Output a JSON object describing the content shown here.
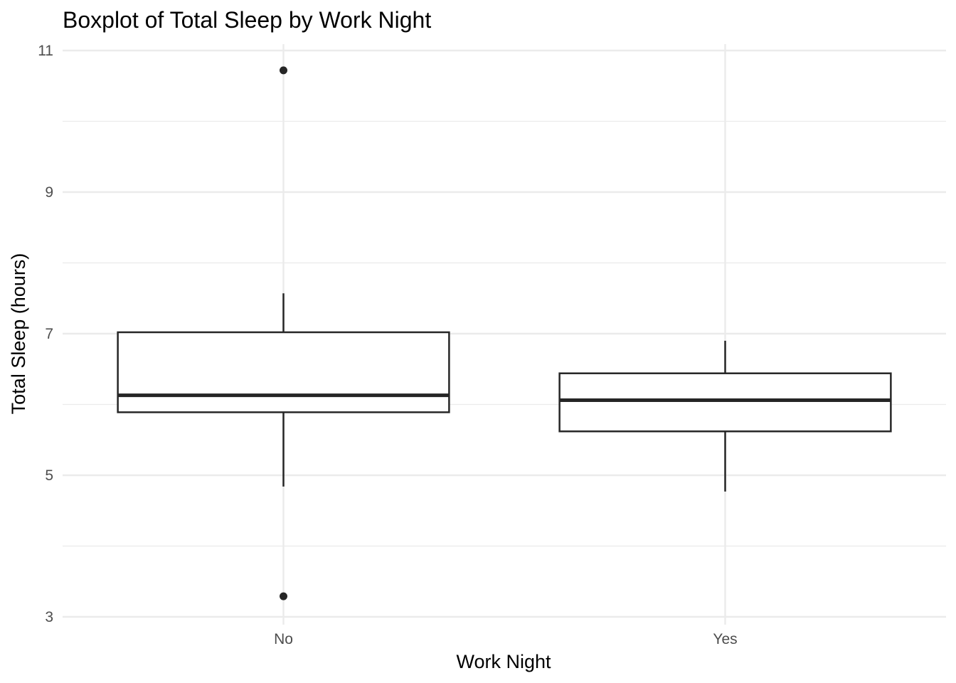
{
  "chart_data": {
    "type": "boxplot",
    "title": "Boxplot of Total Sleep by Work Night",
    "xlabel": "Work Night",
    "ylabel": "Total Sleep (hours)",
    "categories": [
      "No",
      "Yes"
    ],
    "ylim": [
      3,
      11
    ],
    "yticks": [
      3,
      5,
      7,
      9,
      11
    ],
    "grid": true,
    "legend": "none",
    "boxes": [
      {
        "category": "No",
        "whisker_low": 4.84,
        "q1": 5.89,
        "median": 6.13,
        "q3": 7.02,
        "whisker_high": 7.57,
        "outliers": [
          10.72,
          3.29
        ]
      },
      {
        "category": "Yes",
        "whisker_low": 4.77,
        "q1": 5.62,
        "median": 6.06,
        "q3": 6.44,
        "whisker_high": 6.9,
        "outliers": []
      }
    ]
  }
}
